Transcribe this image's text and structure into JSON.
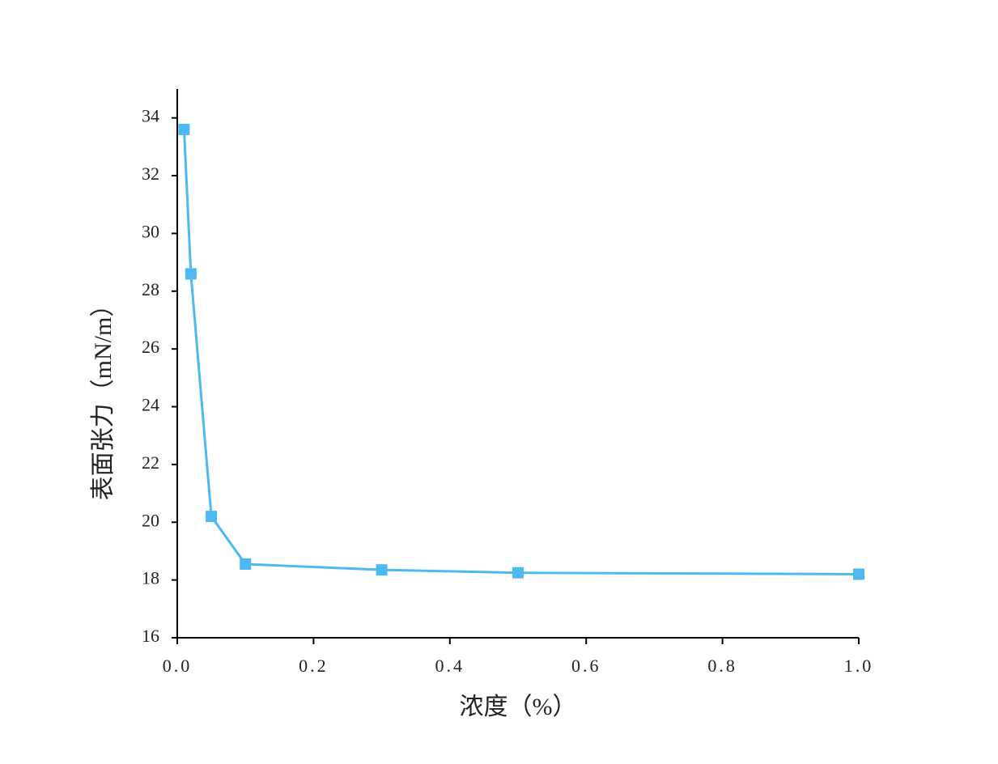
{
  "chart_data": {
    "type": "line",
    "x_label": "浓度（%）",
    "y_label": "表面张力（mN/m）",
    "x": [
      0.01,
      0.02,
      0.05,
      0.1,
      0.3,
      0.5,
      1.0
    ],
    "series": [
      {
        "name": "表面张力",
        "color": "#4cb9f2",
        "values": [
          33.6,
          28.6,
          20.2,
          18.55,
          18.35,
          18.25,
          18.2
        ]
      }
    ],
    "xlim": [
      0,
      1.0
    ],
    "xticks": [
      {
        "value": 0,
        "label": "0.0"
      },
      {
        "value": 0.2,
        "label": "0.2"
      },
      {
        "value": 0.4,
        "label": "0.4"
      },
      {
        "value": 0.6,
        "label": "0.6"
      },
      {
        "value": 0.8,
        "label": "0.8"
      },
      {
        "value": 1.0,
        "label": "1.0"
      }
    ],
    "ylim": [
      16,
      35
    ],
    "yticks": [
      16,
      18,
      20,
      22,
      24,
      26,
      28,
      30,
      32,
      34
    ],
    "grid": false
  }
}
